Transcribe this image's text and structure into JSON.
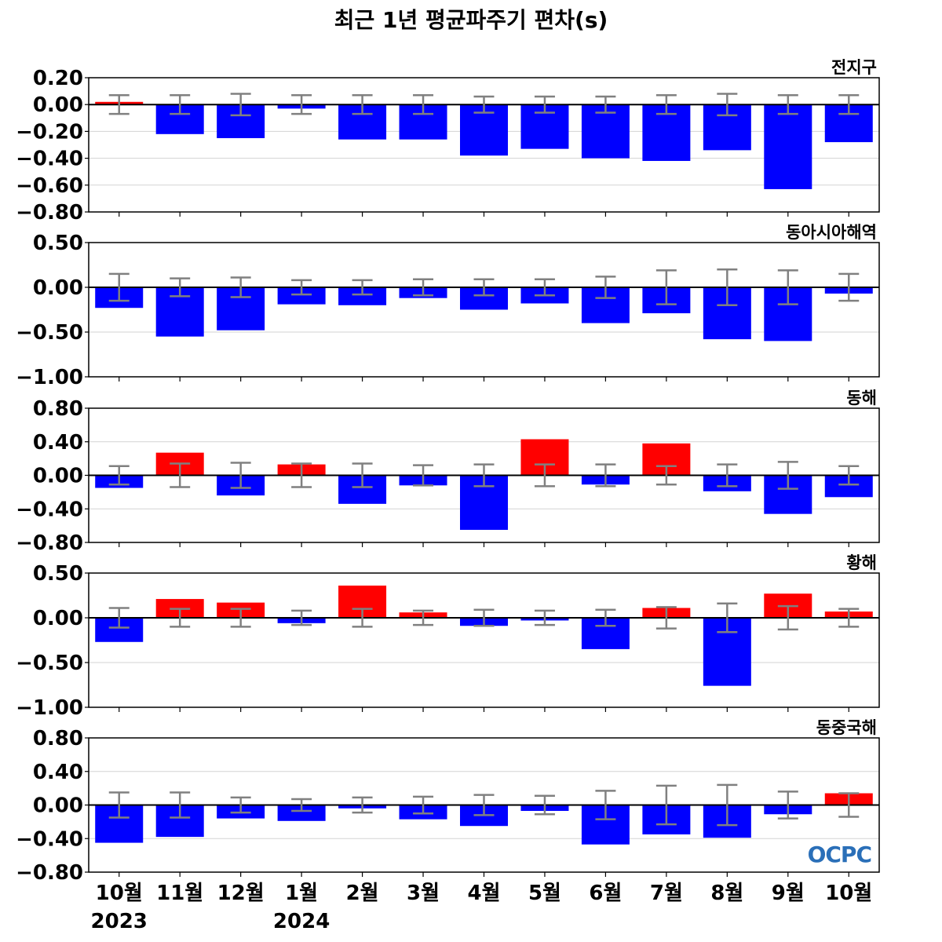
{
  "title": "최근 1년 평균파주기 편차(s)",
  "logo": "OCPC",
  "colors": {
    "positive": "#ff0000",
    "negative": "#0000ff",
    "error_bar": "#808080",
    "zero_line": "#000000",
    "grid": "#d3d3d3",
    "logo": "#2a6fb8"
  },
  "x_labels": [
    "10월",
    "11월",
    "12월",
    "1월",
    "2월",
    "3월",
    "4월",
    "5월",
    "6월",
    "7월",
    "8월",
    "9월",
    "10월"
  ],
  "year_labels": [
    {
      "index": 0,
      "text": "2023"
    },
    {
      "index": 3,
      "text": "2024"
    }
  ],
  "chart_data": [
    {
      "type": "bar",
      "panel_label": "전지구",
      "ylim": [
        -0.8,
        0.2
      ],
      "yticks": [
        -0.8,
        -0.6,
        -0.4,
        -0.2,
        0.0,
        0.2
      ],
      "ytick_labels": [
        "−0.80",
        "−0.60",
        "−0.40",
        "−0.20",
        "0.00",
        "0.20"
      ],
      "categories": [
        "10월",
        "11월",
        "12월",
        "1월",
        "2월",
        "3월",
        "4월",
        "5월",
        "6월",
        "7월",
        "8월",
        "9월",
        "10월"
      ],
      "values": [
        0.02,
        -0.22,
        -0.25,
        -0.03,
        -0.26,
        -0.26,
        -0.38,
        -0.33,
        -0.4,
        -0.42,
        -0.34,
        -0.63,
        -0.28
      ],
      "error": [
        0.07,
        0.07,
        0.08,
        0.07,
        0.07,
        0.07,
        0.06,
        0.06,
        0.06,
        0.07,
        0.08,
        0.07,
        0.07
      ]
    },
    {
      "type": "bar",
      "panel_label": "동아시아해역",
      "ylim": [
        -1.0,
        0.5
      ],
      "yticks": [
        -1.0,
        -0.5,
        0.0,
        0.5
      ],
      "ytick_labels": [
        "−1.00",
        "−0.50",
        "0.00",
        "0.50"
      ],
      "categories": [
        "10월",
        "11월",
        "12월",
        "1월",
        "2월",
        "3월",
        "4월",
        "5월",
        "6월",
        "7월",
        "8월",
        "9월",
        "10월"
      ],
      "values": [
        -0.23,
        -0.55,
        -0.48,
        -0.19,
        -0.2,
        -0.12,
        -0.25,
        -0.18,
        -0.4,
        -0.29,
        -0.58,
        -0.6,
        -0.07
      ],
      "error": [
        0.15,
        0.1,
        0.11,
        0.08,
        0.08,
        0.09,
        0.09,
        0.09,
        0.12,
        0.19,
        0.2,
        0.19,
        0.15
      ]
    },
    {
      "type": "bar",
      "panel_label": "동해",
      "ylim": [
        -0.8,
        0.8
      ],
      "yticks": [
        -0.8,
        -0.4,
        0.0,
        0.4,
        0.8
      ],
      "ytick_labels": [
        "−0.80",
        "−0.40",
        "0.00",
        "0.40",
        "0.80"
      ],
      "categories": [
        "10월",
        "11월",
        "12월",
        "1월",
        "2월",
        "3월",
        "4월",
        "5월",
        "6월",
        "7월",
        "8월",
        "9월",
        "10월"
      ],
      "values": [
        -0.15,
        0.27,
        -0.24,
        0.13,
        -0.34,
        -0.12,
        -0.65,
        0.43,
        -0.11,
        0.38,
        -0.19,
        -0.46,
        -0.26
      ],
      "error": [
        0.11,
        0.14,
        0.15,
        0.14,
        0.14,
        0.12,
        0.13,
        0.13,
        0.13,
        0.11,
        0.13,
        0.16,
        0.11
      ]
    },
    {
      "type": "bar",
      "panel_label": "황해",
      "ylim": [
        -1.0,
        0.5
      ],
      "yticks": [
        -1.0,
        -0.5,
        0.0,
        0.5
      ],
      "ytick_labels": [
        "−1.00",
        "−0.50",
        "0.00",
        "0.50"
      ],
      "categories": [
        "10월",
        "11월",
        "12월",
        "1월",
        "2월",
        "3월",
        "4월",
        "5월",
        "6월",
        "7월",
        "8월",
        "9월",
        "10월"
      ],
      "values": [
        -0.27,
        0.21,
        0.17,
        -0.06,
        0.36,
        0.06,
        -0.09,
        -0.03,
        -0.35,
        0.11,
        -0.76,
        0.27,
        0.07
      ],
      "error": [
        0.11,
        0.1,
        0.1,
        0.08,
        0.1,
        0.08,
        0.09,
        0.08,
        0.09,
        0.12,
        0.16,
        0.13,
        0.1
      ]
    },
    {
      "type": "bar",
      "panel_label": "동중국해",
      "ylim": [
        -0.8,
        0.8
      ],
      "yticks": [
        -0.8,
        -0.4,
        0.0,
        0.4,
        0.8
      ],
      "ytick_labels": [
        "−0.80",
        "−0.40",
        "0.00",
        "0.40",
        "0.80"
      ],
      "categories": [
        "10월",
        "11월",
        "12월",
        "1월",
        "2월",
        "3월",
        "4월",
        "5월",
        "6월",
        "7월",
        "8월",
        "9월",
        "10월"
      ],
      "values": [
        -0.45,
        -0.38,
        -0.16,
        -0.19,
        -0.04,
        -0.17,
        -0.25,
        -0.07,
        -0.47,
        -0.35,
        -0.39,
        -0.11,
        0.14
      ],
      "error": [
        0.15,
        0.15,
        0.09,
        0.07,
        0.09,
        0.1,
        0.12,
        0.11,
        0.17,
        0.23,
        0.24,
        0.16,
        0.14
      ]
    }
  ]
}
